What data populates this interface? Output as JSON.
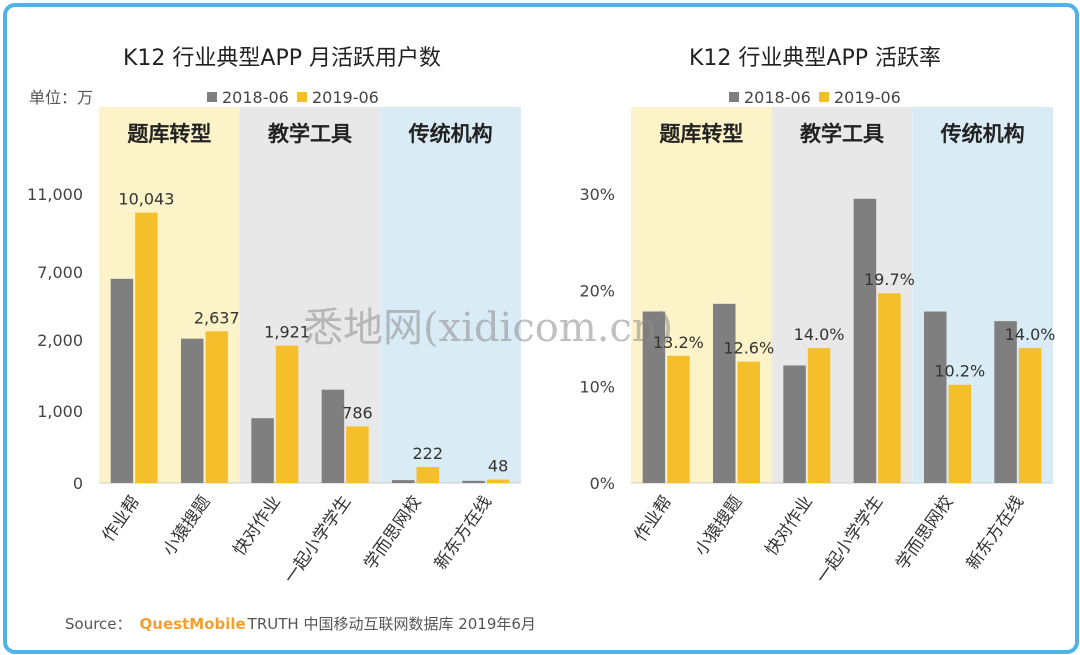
{
  "watermark": "悉地网(xidicom.cn)",
  "source": {
    "label": "Source：",
    "brand": "QuestMobile",
    "text": "TRUTH 中国移动互联网数据库 2019年6月"
  },
  "colors": {
    "s2018": "#7f7f7f",
    "s2019": "#f5bf2c",
    "g1": "#fdf3c8",
    "g2": "#e8e8e8",
    "g3": "#d9ecf6"
  },
  "chart_data": [
    {
      "type": "bar",
      "title": "K12 行业典型APP 月活跃用户数",
      "unit": "单位：万",
      "categories": [
        "作业帮",
        "小猿搜题",
        "快对作业",
        "一起小学学生",
        "学而思网校",
        "新东方在线"
      ],
      "groups": [
        {
          "name": "题库转型",
          "from": 0,
          "to": 1
        },
        {
          "name": "教学工具",
          "from": 2,
          "to": 3
        },
        {
          "name": "传统机构",
          "from": 4,
          "to": 5
        }
      ],
      "yticks": [
        {
          "value": 0,
          "label": "0"
        },
        {
          "value": 1000,
          "label": "1,000"
        },
        {
          "value": 2000,
          "label": "2,000"
        },
        {
          "value": 7000,
          "label": "7,000"
        },
        {
          "value": 11000,
          "label": "11,000"
        }
      ],
      "series": [
        {
          "name": "2018-06",
          "values": [
            6500,
            2100,
            900,
            1300,
            40,
            30
          ],
          "labels": [
            "",
            "",
            "",
            "",
            "",
            ""
          ]
        },
        {
          "name": "2019-06",
          "values": [
            10043,
            2637,
            1921,
            786,
            222,
            48
          ],
          "labels": [
            "10,043",
            "2,637",
            "1,921",
            "786",
            "222",
            "48"
          ]
        }
      ],
      "legend": "top",
      "grid": false
    },
    {
      "type": "bar",
      "title": "K12 行业典型APP 活跃率",
      "categories": [
        "作业帮",
        "小猿搜题",
        "快对作业",
        "一起小学学生",
        "学而思网校",
        "新东方在线"
      ],
      "groups": [
        {
          "name": "题库转型",
          "from": 0,
          "to": 1
        },
        {
          "name": "教学工具",
          "from": 2,
          "to": 3
        },
        {
          "name": "传统机构",
          "from": 4,
          "to": 5
        }
      ],
      "yticks": [
        {
          "value": 0,
          "label": "0%"
        },
        {
          "value": 10,
          "label": "10%"
        },
        {
          "value": 20,
          "label": "20%"
        },
        {
          "value": 30,
          "label": "30%"
        }
      ],
      "ylim": [
        0,
        34
      ],
      "series": [
        {
          "name": "2018-06",
          "values": [
            17.8,
            18.6,
            12.2,
            29.5,
            17.8,
            16.8
          ],
          "labels": [
            "",
            "",
            "",
            "",
            "",
            ""
          ]
        },
        {
          "name": "2019-06",
          "values": [
            13.2,
            12.6,
            14.0,
            19.7,
            10.2,
            14.0
          ],
          "labels": [
            "13.2%",
            "12.6%",
            "14.0%",
            "19.7%",
            "10.2%",
            "14.0%"
          ]
        }
      ],
      "legend": "top",
      "grid": false
    }
  ]
}
